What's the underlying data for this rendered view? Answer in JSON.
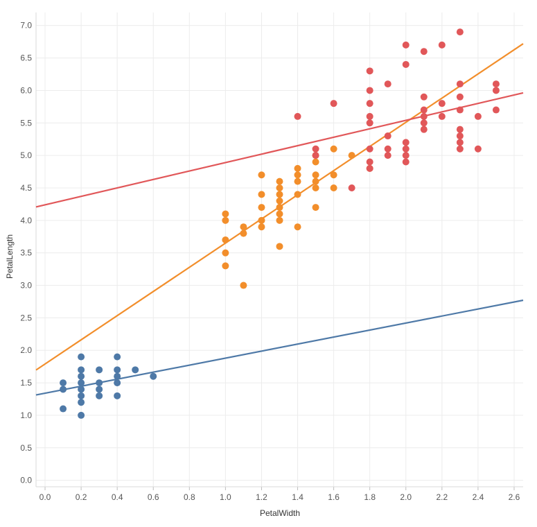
{
  "chart_data": {
    "type": "scatter",
    "xlabel": "PetalWidth",
    "ylabel": "PetalLength",
    "xlim": [
      -0.05,
      2.65
    ],
    "ylim": [
      -0.1,
      7.2
    ],
    "x_ticks": [
      "0.0",
      "0.2",
      "0.4",
      "0.6",
      "0.8",
      "1.0",
      "1.2",
      "1.4",
      "1.6",
      "1.8",
      "2.0",
      "2.2",
      "2.4",
      "2.6"
    ],
    "y_ticks": [
      "0.0",
      "0.5",
      "1.0",
      "1.5",
      "2.0",
      "2.5",
      "3.0",
      "3.5",
      "4.0",
      "4.5",
      "5.0",
      "5.5",
      "6.0",
      "6.5",
      "7.0"
    ],
    "grid": true,
    "legend": "none",
    "series": [
      {
        "color": "#4e79a7",
        "points": [
          [
            0.1,
            1.5
          ],
          [
            0.1,
            1.4
          ],
          [
            0.1,
            1.1
          ],
          [
            0.2,
            1.9
          ],
          [
            0.2,
            1.7
          ],
          [
            0.2,
            1.6
          ],
          [
            0.2,
            1.5
          ],
          [
            0.2,
            1.4
          ],
          [
            0.2,
            1.3
          ],
          [
            0.2,
            1.2
          ],
          [
            0.2,
            1.0
          ],
          [
            0.3,
            1.7
          ],
          [
            0.3,
            1.5
          ],
          [
            0.3,
            1.4
          ],
          [
            0.3,
            1.3
          ],
          [
            0.4,
            1.9
          ],
          [
            0.4,
            1.7
          ],
          [
            0.4,
            1.6
          ],
          [
            0.4,
            1.5
          ],
          [
            0.4,
            1.3
          ],
          [
            0.5,
            1.7
          ],
          [
            0.6,
            1.6
          ]
        ],
        "trend": {
          "slope": 0.54,
          "intercept": 1.34
        }
      },
      {
        "color": "#f28e2b",
        "points": [
          [
            1.0,
            4.1
          ],
          [
            1.0,
            4.0
          ],
          [
            1.0,
            3.7
          ],
          [
            1.0,
            3.5
          ],
          [
            1.0,
            3.3
          ],
          [
            1.1,
            3.9
          ],
          [
            1.1,
            3.8
          ],
          [
            1.1,
            3.0
          ],
          [
            1.2,
            4.7
          ],
          [
            1.2,
            4.4
          ],
          [
            1.2,
            4.2
          ],
          [
            1.2,
            4.0
          ],
          [
            1.2,
            3.9
          ],
          [
            1.3,
            4.6
          ],
          [
            1.3,
            4.5
          ],
          [
            1.3,
            4.4
          ],
          [
            1.3,
            4.3
          ],
          [
            1.3,
            4.2
          ],
          [
            1.3,
            4.1
          ],
          [
            1.3,
            4.0
          ],
          [
            1.3,
            3.6
          ],
          [
            1.4,
            4.8
          ],
          [
            1.4,
            4.7
          ],
          [
            1.4,
            4.6
          ],
          [
            1.4,
            4.4
          ],
          [
            1.4,
            3.9
          ],
          [
            1.5,
            5.0
          ],
          [
            1.5,
            4.9
          ],
          [
            1.5,
            4.7
          ],
          [
            1.5,
            4.6
          ],
          [
            1.5,
            4.5
          ],
          [
            1.5,
            4.2
          ],
          [
            1.6,
            5.1
          ],
          [
            1.6,
            4.7
          ],
          [
            1.6,
            4.5
          ],
          [
            1.7,
            5.0
          ],
          [
            1.8,
            4.8
          ]
        ],
        "trend": {
          "slope": 1.86,
          "intercept": 1.79
        }
      },
      {
        "color": "#e15759",
        "points": [
          [
            1.4,
            5.6
          ],
          [
            1.5,
            5.1
          ],
          [
            1.5,
            5.0
          ],
          [
            1.6,
            5.8
          ],
          [
            1.7,
            4.5
          ],
          [
            1.8,
            6.3
          ],
          [
            1.8,
            6.0
          ],
          [
            1.8,
            5.8
          ],
          [
            1.8,
            5.6
          ],
          [
            1.8,
            5.5
          ],
          [
            1.8,
            5.1
          ],
          [
            1.8,
            4.9
          ],
          [
            1.8,
            4.8
          ],
          [
            1.9,
            6.1
          ],
          [
            1.9,
            5.3
          ],
          [
            1.9,
            5.1
          ],
          [
            1.9,
            5.0
          ],
          [
            2.0,
            6.7
          ],
          [
            2.0,
            6.4
          ],
          [
            2.0,
            5.2
          ],
          [
            2.0,
            5.1
          ],
          [
            2.0,
            5.0
          ],
          [
            2.0,
            4.9
          ],
          [
            2.1,
            6.6
          ],
          [
            2.1,
            5.9
          ],
          [
            2.1,
            5.7
          ],
          [
            2.1,
            5.6
          ],
          [
            2.1,
            5.5
          ],
          [
            2.1,
            5.4
          ],
          [
            2.2,
            6.7
          ],
          [
            2.2,
            5.8
          ],
          [
            2.2,
            5.6
          ],
          [
            2.3,
            6.9
          ],
          [
            2.3,
            6.1
          ],
          [
            2.3,
            5.9
          ],
          [
            2.3,
            5.7
          ],
          [
            2.3,
            5.4
          ],
          [
            2.3,
            5.3
          ],
          [
            2.3,
            5.2
          ],
          [
            2.3,
            5.1
          ],
          [
            2.4,
            5.6
          ],
          [
            2.4,
            5.1
          ],
          [
            2.5,
            6.1
          ],
          [
            2.5,
            6.0
          ],
          [
            2.5,
            5.7
          ]
        ],
        "trend": {
          "slope": 0.65,
          "intercept": 4.24
        }
      }
    ]
  }
}
